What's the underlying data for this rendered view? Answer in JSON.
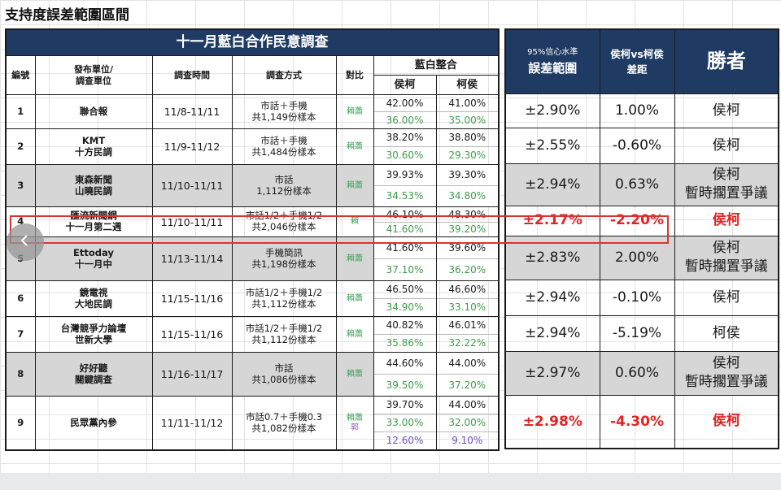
{
  "sheet_title": "支持度誤差範圍區間",
  "main_table": {
    "banner": "十一月藍白合作民意調查",
    "headers": {
      "no": "編號",
      "unit_line1": "發布單位/",
      "unit_line2": "調查單位",
      "date": "調查時間",
      "method": "調查方式",
      "compare": "對比",
      "combined": "藍白整合",
      "hou_ke": "侯柯",
      "ke_hou": "柯侯"
    },
    "rows": [
      {
        "no": "1",
        "unit1": "聯合報",
        "unit2": "",
        "date": "11/8-11/11",
        "method1": "市話＋手機",
        "method2": "共1,149份樣本",
        "cmp": [
          "賴蕭"
        ],
        "hk": [
          "42.00%",
          "36.00%"
        ],
        "kh": [
          "41.00%",
          "35.00%"
        ]
      },
      {
        "no": "2",
        "unit1": "KMT",
        "unit2": "十方民調",
        "date": "11/9-11/12",
        "method1": "市話＋手機",
        "method2": "共1,484份樣本",
        "cmp": [
          "賴蕭"
        ],
        "hk": [
          "38.20%",
          "30.60%"
        ],
        "kh": [
          "38.80%",
          "29.30%"
        ]
      },
      {
        "no": "3",
        "unit1": "東森新聞",
        "unit2": "山曉民調",
        "date": "11/10-11/11",
        "method1": "市話",
        "method2": "1,112份樣本",
        "cmp": [
          "賴蕭"
        ],
        "hk": [
          "39.93%",
          "34.53%"
        ],
        "kh": [
          "39.30%",
          "34.80%"
        ]
      },
      {
        "no": "4",
        "unit1": "匯流新聞網",
        "unit2": "十一月第二週",
        "date": "11/10-11/11",
        "method1": "市話1/2＋手機1/2",
        "method2": "共2,046份樣本",
        "cmp": [
          "賴"
        ],
        "hk": [
          "46.10%",
          "41.60%"
        ],
        "kh": [
          "48.30%",
          "39.20%"
        ]
      },
      {
        "no": "5",
        "unit1": "Ettoday",
        "unit2": "十一月中",
        "date": "11/13-11/14",
        "method1": "手機簡訊",
        "method2": "共1,198份樣本",
        "cmp": [
          "賴蕭"
        ],
        "hk": [
          "41.60%",
          "37.10%"
        ],
        "kh": [
          "39.60%",
          "36.20%"
        ]
      },
      {
        "no": "6",
        "unit1": "鏡電視",
        "unit2": "大地民調",
        "date": "11/15-11/16",
        "method1": "市話1/2＋手機1/2",
        "method2": "共1,112份樣本",
        "cmp": [
          "賴蕭"
        ],
        "hk": [
          "46.50%",
          "34.90%"
        ],
        "kh": [
          "46.60%",
          "33.10%"
        ]
      },
      {
        "no": "7",
        "unit1": "台灣競爭力論壇",
        "unit2": "世新大學",
        "date": "11/15-11/16",
        "method1": "市話1/2＋手機1/2",
        "method2": "共1,112份樣本",
        "cmp": [
          "賴蕭"
        ],
        "hk": [
          "40.82%",
          "35.86%"
        ],
        "kh": [
          "46.01%",
          "32.22%"
        ]
      },
      {
        "no": "8",
        "unit1": "好好聽",
        "unit2": "關鍵調查",
        "date": "11/16-11/17",
        "method1": "市話",
        "method2": "共1,086份樣本",
        "cmp": [
          "賴蕭"
        ],
        "hk": [
          "44.60%",
          "39.50%"
        ],
        "kh": [
          "44.00%",
          "37.20%"
        ]
      },
      {
        "no": "9",
        "unit1": "民眾黨內參",
        "unit2": "",
        "date": "11/11-11/12",
        "method1": "市話0.7＋手機0.3",
        "method2": "共1,082份樣本",
        "cmp": [
          "賴蕭",
          "郭"
        ],
        "hk": [
          "39.70%",
          "33.00%",
          "12.60%"
        ],
        "kh": [
          "44.00%",
          "32.00%",
          "9.10%"
        ]
      }
    ]
  },
  "side_table": {
    "headers": {
      "margin_line1": "95%信心水準",
      "margin_line2": "誤差範圍",
      "gap_line1": "侯柯vs柯侯",
      "gap_line2": "差距",
      "winner": "勝者"
    },
    "rows": [
      {
        "margin": "±2.90%",
        "gap": "1.00%",
        "winner1": "侯柯",
        "winner2": ""
      },
      {
        "margin": "±2.55%",
        "gap": "-0.60%",
        "winner1": "侯柯",
        "winner2": ""
      },
      {
        "margin": "±2.94%",
        "gap": "0.63%",
        "winner1": "侯柯",
        "winner2": "暫時擱置爭議"
      },
      {
        "margin": "±2.17%",
        "gap": "-2.20%",
        "winner1": "侯柯",
        "winner2": ""
      },
      {
        "margin": "±2.83%",
        "gap": "2.00%",
        "winner1": "侯柯",
        "winner2": "暫時擱置爭議"
      },
      {
        "margin": "±2.94%",
        "gap": "-0.10%",
        "winner1": "侯柯",
        "winner2": ""
      },
      {
        "margin": "±2.94%",
        "gap": "-5.19%",
        "winner1": "柯侯",
        "winner2": ""
      },
      {
        "margin": "±2.97%",
        "gap": "0.60%",
        "winner1": "侯柯",
        "winner2": "暫時擱置爭議"
      },
      {
        "margin": "±2.98%",
        "gap": "-4.30%",
        "winner1": "侯柯",
        "winner2": ""
      }
    ]
  },
  "colors": {
    "banner_bg": "#1f3a63",
    "highlight_red": "#e02424",
    "green_text": "#3e9b4a",
    "purple_text": "#6b52b8",
    "shaded_row": "#d6d6d6"
  },
  "icons": {
    "back": "chevron-left-icon"
  }
}
